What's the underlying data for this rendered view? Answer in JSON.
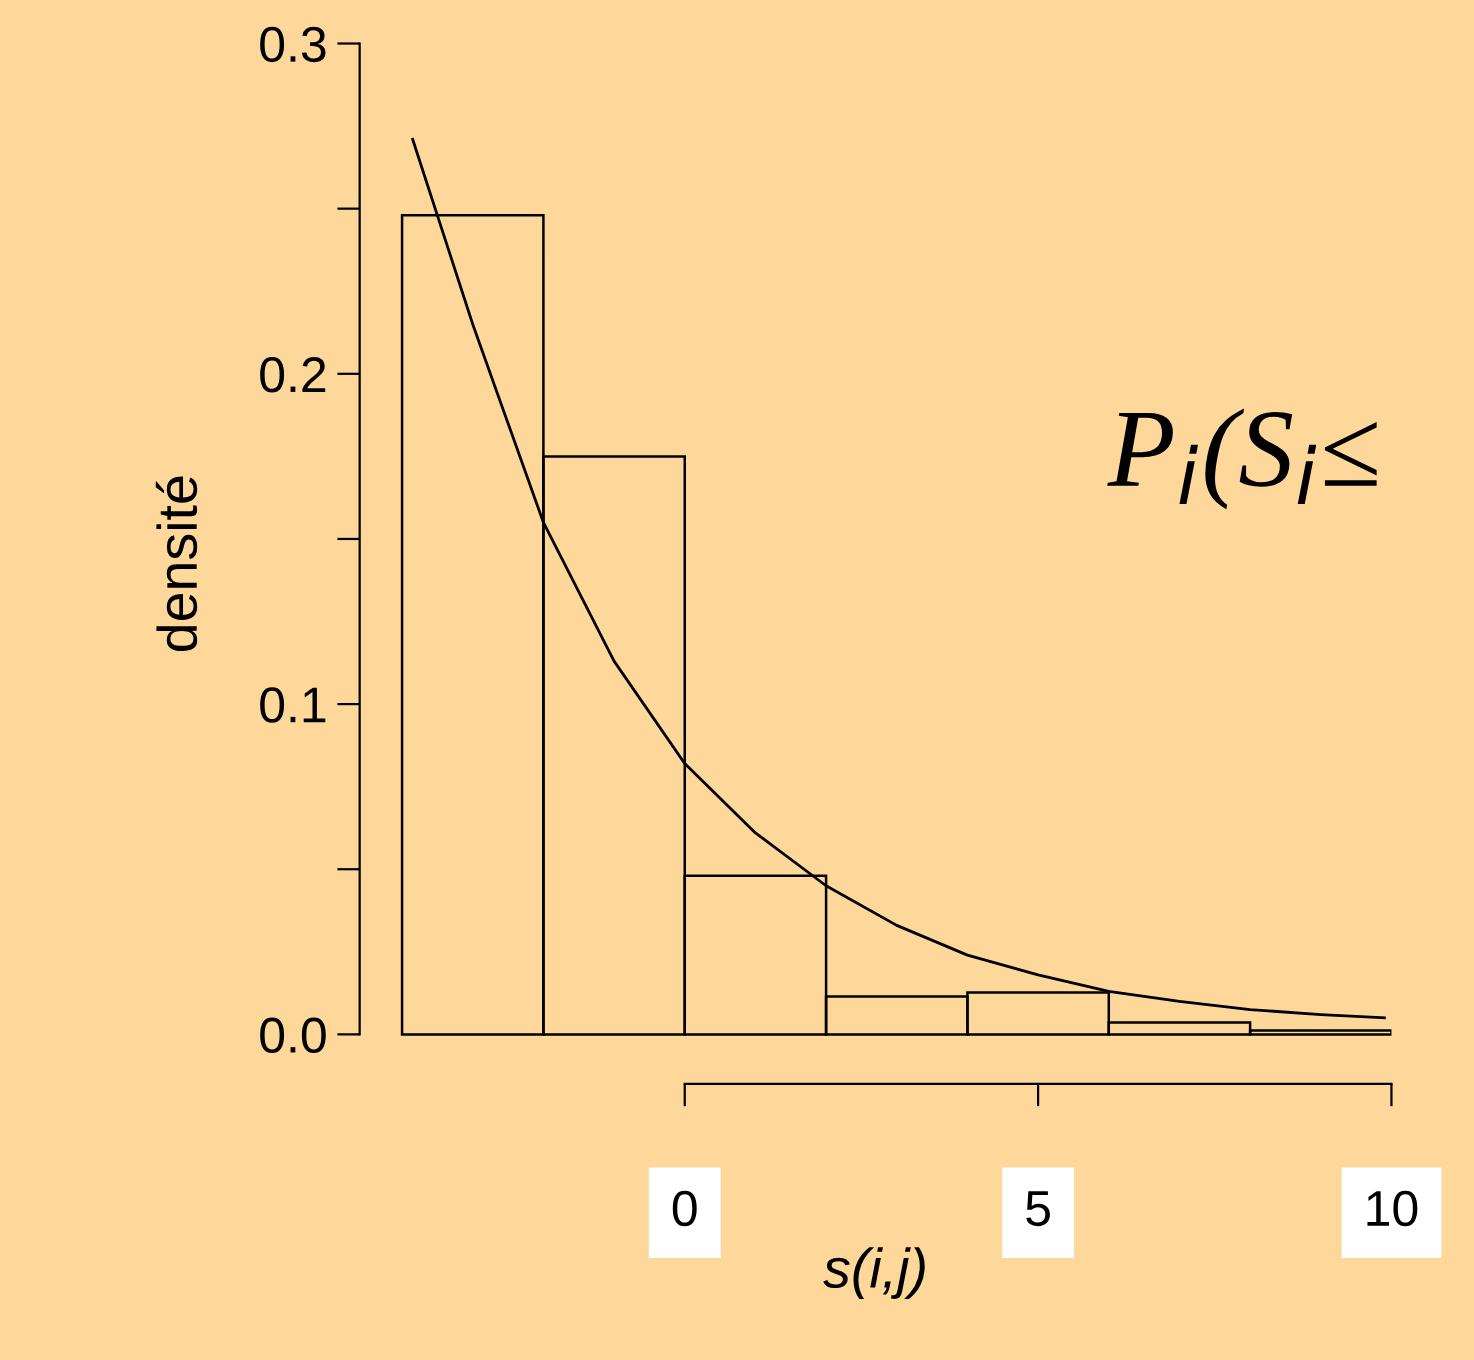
{
  "chart_data": {
    "type": "histogram",
    "xlabel": "s(i,j)",
    "ylabel": "densité",
    "bins": [
      -4,
      -2,
      0,
      2,
      4,
      6,
      8,
      10
    ],
    "values": [
      0.248,
      0.175,
      0.048,
      0.0115,
      0.0127,
      0.0036,
      0.0012
    ],
    "series": [
      {
        "type": "line",
        "x": [
          -3.85,
          -3,
          -2,
          -1,
          0,
          1,
          2,
          3,
          4,
          5,
          6,
          7,
          8,
          9,
          9.9
        ],
        "values": [
          0.271,
          0.215,
          0.155,
          0.113,
          0.082,
          0.061,
          0.045,
          0.033,
          0.024,
          0.018,
          0.013,
          0.01,
          0.0075,
          0.006,
          0.005
        ],
        "color": "#000000"
      }
    ],
    "xlim": [
      -4.6,
      10
    ],
    "xticks": [
      0,
      5,
      10
    ],
    "ylim": [
      -0.015,
      0.3
    ],
    "yticks": [
      {
        "value": 0,
        "label": "0.0"
      },
      {
        "value": 0.05,
        "label": null
      },
      0.1,
      {
        "value": 0.15,
        "label": null
      },
      0.2,
      {
        "value": 0.25,
        "label": null
      },
      0.3
    ],
    "annotations": [
      "P$_{i}$(S$_{i}$≤"
    ],
    "grid": false,
    "legend": false
  }
}
